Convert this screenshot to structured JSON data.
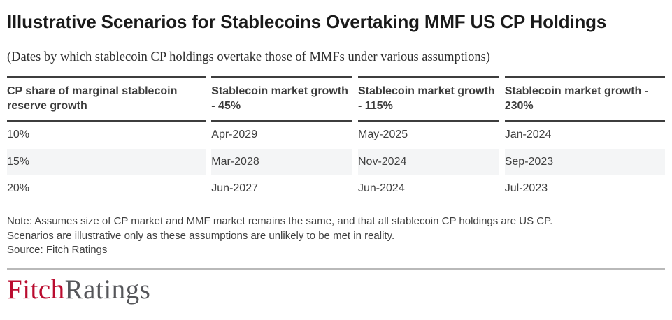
{
  "chart_data": {
    "type": "table",
    "title": "Illustrative Scenarios for Stablecoins Overtaking MMF US CP Holdings",
    "subtitle": "(Dates by which stablecoin CP holdings overtake those of MMFs under various assumptions)",
    "columns": [
      "CP share of marginal stablecoin reserve growth",
      "Stablecoin market growth - 45%",
      "Stablecoin market growth - 115%",
      "Stablecoin market growth - 230%"
    ],
    "rows": [
      [
        "10%",
        "Apr-2029",
        "May-2025",
        "Jan-2024"
      ],
      [
        "15%",
        "Mar-2028",
        "Nov-2024",
        "Sep-2023"
      ],
      [
        "20%",
        "Jun-2027",
        "Jun-2024",
        "Jul-2023"
      ]
    ],
    "note_lines": [
      "Note: Assumes size of CP market and MMF market remains the same, and that all stablecoin CP holdings are US CP.",
      "Scenarios are illustrative only as these assumptions are unlikely to be met in reality.",
      "Source: Fitch Ratings"
    ],
    "source": "Fitch Ratings",
    "layout": {
      "striped_row_index": 1,
      "legend": "none",
      "grid": "horizontal-header-borders-only"
    }
  },
  "footer": {
    "logo_fitch": "Fitch",
    "logo_ratings": "Ratings"
  },
  "colors": {
    "fitch_red": "#ba0c2f",
    "logo_gray": "#55565a",
    "row_stripe": "#f4f5f6",
    "table_border": "#3d3d3d",
    "footer_rule": "#b9b9b9"
  }
}
